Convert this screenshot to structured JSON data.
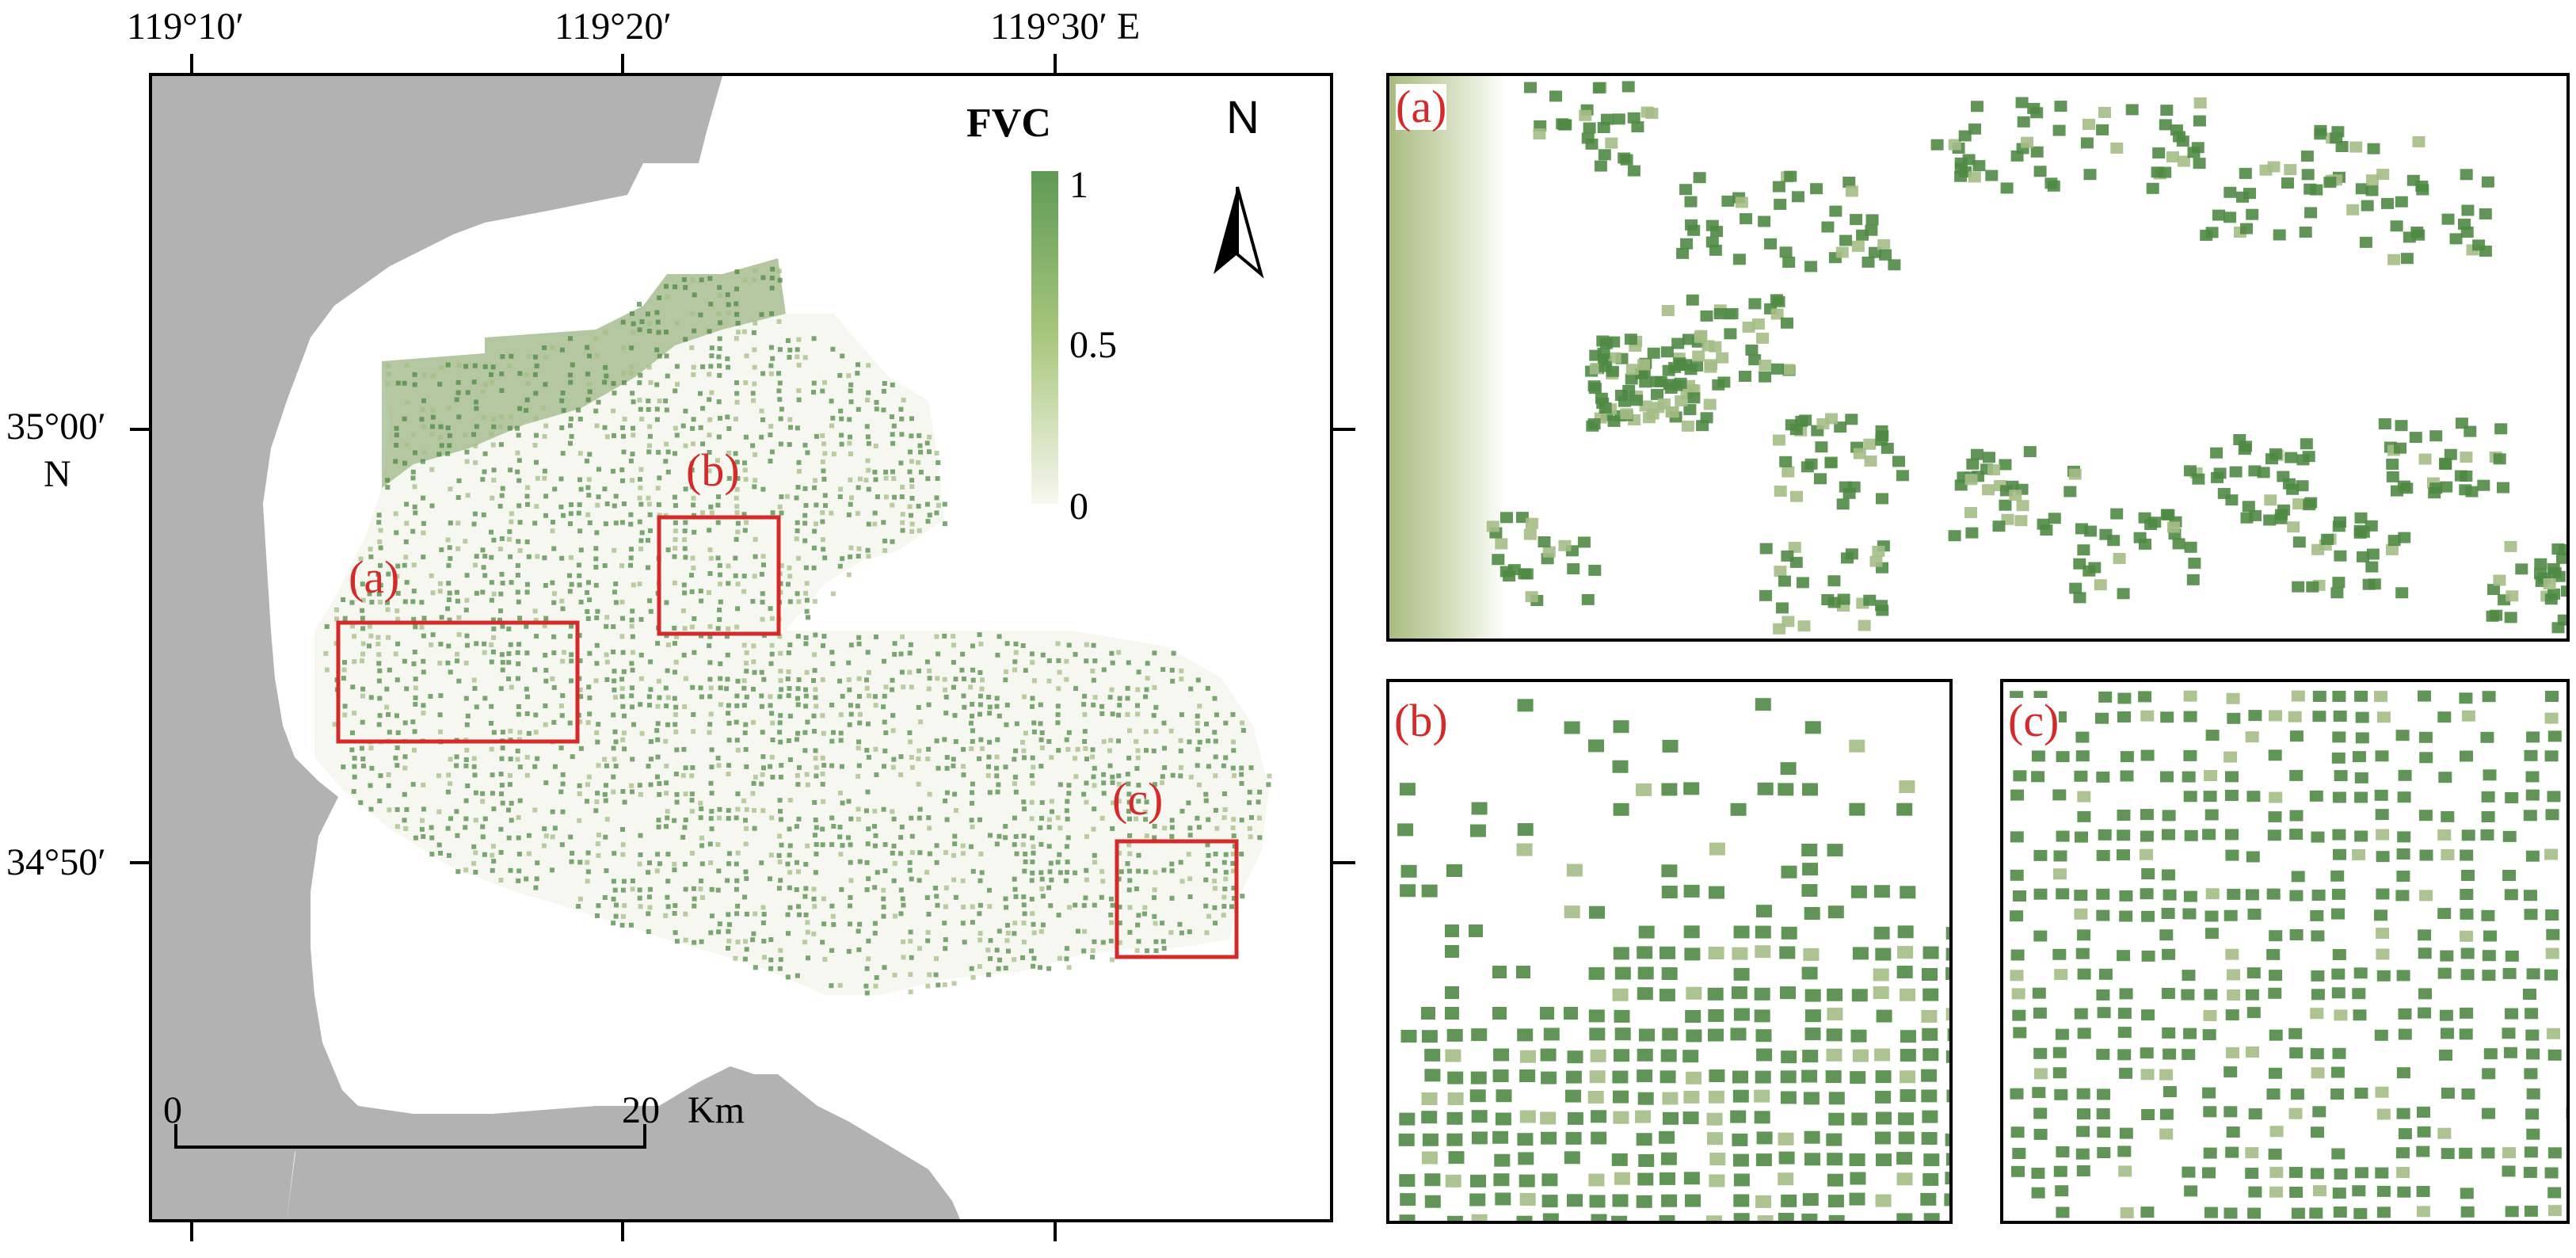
{
  "map": {
    "top_longitudes": [
      "119°10′",
      "119°20′",
      "119°30′ E"
    ],
    "left_latitudes": [
      {
        "value": "35°00′",
        "suffix": "N"
      },
      {
        "value": "34°50′",
        "suffix": ""
      }
    ],
    "legend": {
      "title": "FVC",
      "max_label": "1",
      "mid_label": "0.5",
      "min_label": "0",
      "color_high": "#5e9a55",
      "color_mid": "#a9c77e",
      "color_low": "#f7f8ef"
    },
    "north_arrow_label": "N",
    "scale_bar": {
      "start": "0",
      "end": "20",
      "unit": "Km"
    },
    "inset_labels": [
      "(a)",
      "(b)",
      "(c)"
    ],
    "colors": {
      "land_outside": "#b2b2b2",
      "box_red": "#d42a2a",
      "vegetation_dark": "#4f8a45",
      "vegetation_light": "#a4bd86"
    }
  },
  "panels": {
    "a_label": "(a)",
    "b_label": "(b)",
    "c_label": "(c)"
  }
}
